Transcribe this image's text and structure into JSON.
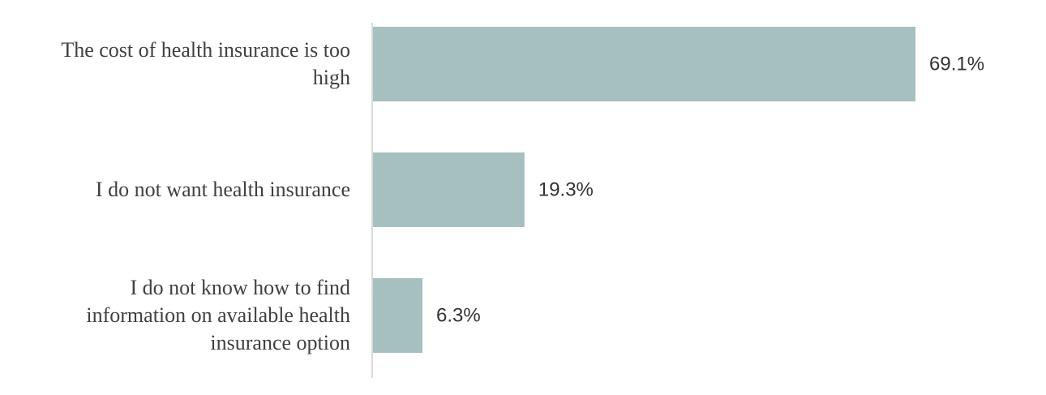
{
  "chart_data": {
    "type": "bar",
    "orientation": "horizontal",
    "categories": [
      "The cost of health insurance is too high",
      "I do not want health insurance",
      "I do not know how to find information on available health insurance option"
    ],
    "values": [
      69.1,
      19.3,
      6.3
    ],
    "value_labels": [
      "69.1%",
      "19.3%",
      "6.3%"
    ],
    "color": "#a6bfbf"
  }
}
